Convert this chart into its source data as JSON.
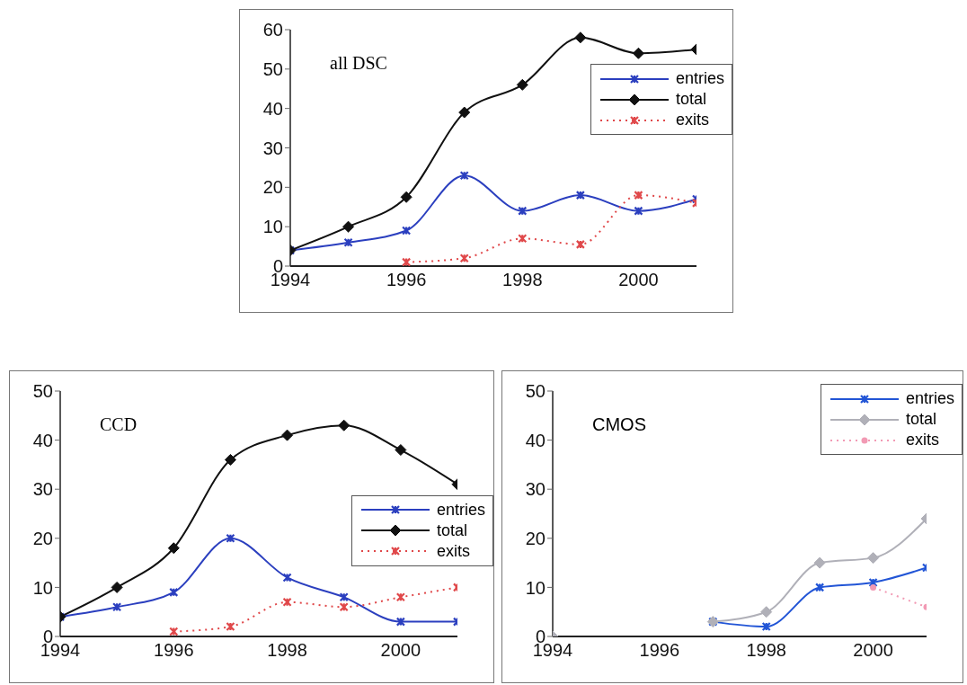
{
  "chart_data": [
    {
      "type": "line",
      "title": "all DSC",
      "x": [
        1994,
        1995,
        1996,
        1997,
        1998,
        1999,
        2000,
        2001
      ],
      "xlim": [
        1994,
        2001
      ],
      "xticks": [
        1994,
        1996,
        1998,
        2000
      ],
      "ylim": [
        0,
        60
      ],
      "yticks": [
        0,
        10,
        20,
        30,
        40,
        50,
        60
      ],
      "legend": "right",
      "grid": false,
      "series": [
        {
          "name": "entries",
          "color": "#2b3fbf",
          "marker": "cross",
          "line_style": "solid",
          "values": [
            4,
            6,
            9,
            23,
            14,
            18,
            14,
            17
          ]
        },
        {
          "name": "total",
          "color": "#111111",
          "marker": "diamond",
          "line_style": "solid",
          "values": [
            4,
            10,
            17.5,
            39,
            46,
            58,
            54,
            55
          ]
        },
        {
          "name": "exits",
          "color": "#e0484a",
          "marker": "cross",
          "line_style": "dotted",
          "values": [
            null,
            null,
            1,
            2,
            7,
            5.5,
            18,
            16
          ]
        }
      ]
    },
    {
      "type": "line",
      "title": "CCD",
      "x": [
        1994,
        1995,
        1996,
        1997,
        1998,
        1999,
        2000,
        2001
      ],
      "xlim": [
        1994,
        2001
      ],
      "xticks": [
        1994,
        1996,
        1998,
        2000
      ],
      "ylim": [
        0,
        50
      ],
      "yticks": [
        0,
        10,
        20,
        30,
        40,
        50
      ],
      "legend": "right",
      "grid": false,
      "series": [
        {
          "name": "entries",
          "color": "#2b3fbf",
          "marker": "cross",
          "line_style": "solid",
          "values": [
            4,
            6,
            9,
            20,
            12,
            8,
            3,
            3
          ]
        },
        {
          "name": "total",
          "color": "#111111",
          "marker": "diamond",
          "line_style": "solid",
          "values": [
            4,
            10,
            18,
            36,
            41,
            43,
            38,
            31
          ]
        },
        {
          "name": "exits",
          "color": "#e0484a",
          "marker": "cross",
          "line_style": "dotted",
          "values": [
            null,
            null,
            1,
            2,
            7,
            6,
            8,
            10
          ]
        }
      ]
    },
    {
      "type": "line",
      "title": "CMOS",
      "x": [
        1994,
        1995,
        1996,
        1997,
        1998,
        1999,
        2000,
        2001
      ],
      "xlim": [
        1994,
        2001
      ],
      "xticks": [
        1994,
        1996,
        1998,
        2000
      ],
      "ylim": [
        0,
        50
      ],
      "yticks": [
        0,
        10,
        20,
        30,
        40,
        50
      ],
      "legend": "top right",
      "grid": false,
      "series": [
        {
          "name": "entries",
          "color": "#2255d6",
          "marker": "cross",
          "line_style": "solid",
          "values": [
            null,
            null,
            null,
            3,
            2,
            10,
            11,
            14
          ]
        },
        {
          "name": "total",
          "color": "#b0b0b8",
          "marker": "diamond",
          "line_style": "solid",
          "values": [
            0,
            null,
            null,
            3,
            5,
            15,
            16,
            24
          ]
        },
        {
          "name": "exits",
          "color": "#f29ab4",
          "marker": "circle",
          "line_style": "dotted",
          "values": [
            null,
            null,
            null,
            null,
            null,
            null,
            10,
            6
          ]
        }
      ]
    }
  ]
}
